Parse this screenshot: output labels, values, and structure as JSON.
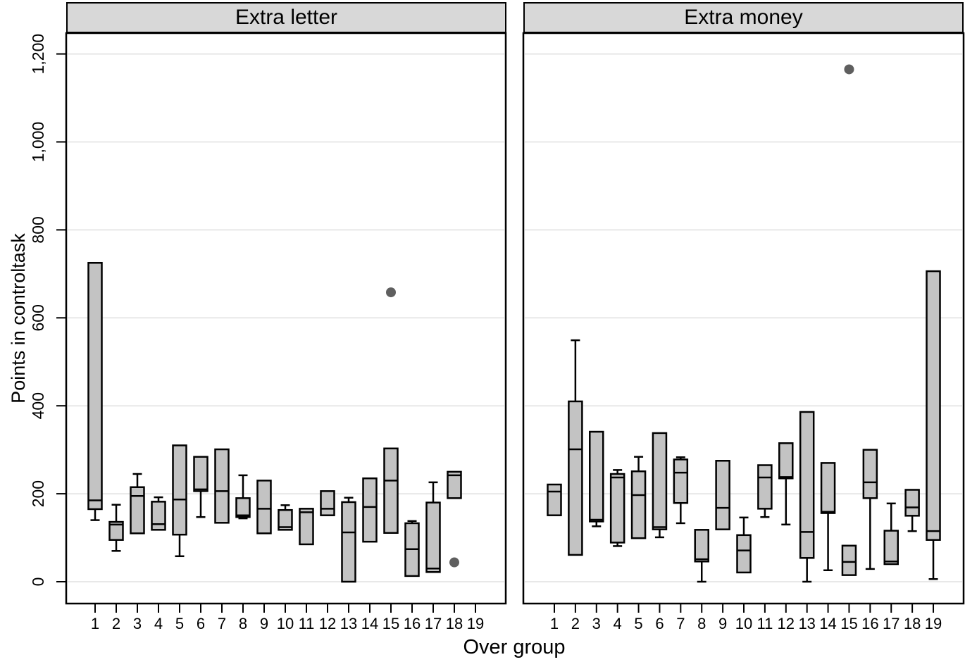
{
  "figure": {
    "x_axis_title": "Over group",
    "y_axis_title": "Points in controltask"
  },
  "chart_data": {
    "type": "boxplot",
    "xlabel": "Over group",
    "ylabel": "Points in controltask",
    "ylim": [
      -50,
      1250
    ],
    "grid": true,
    "y_ticks": [
      0,
      200,
      400,
      600,
      800,
      1000,
      1200
    ],
    "y_tick_labels": [
      "0",
      "200",
      "400",
      "600",
      "800",
      "1,000",
      "1,200"
    ],
    "x_tick_labels": [
      "1",
      "2",
      "3",
      "4",
      "5",
      "6",
      "7",
      "8",
      "9",
      "10",
      "11",
      "12",
      "13",
      "14",
      "15",
      "16",
      "17",
      "18",
      "19"
    ],
    "style": {
      "box_fill": "#c3c3c3",
      "header_fill": "#d8d8d8",
      "line_color": "#000000",
      "grid_color": "#e8e8e8",
      "outlier_color": "#5f5f5f"
    },
    "panels": [
      {
        "title": "Extra letter",
        "boxes": [
          {
            "group": 1,
            "min": 140,
            "q1": 165,
            "median": 185,
            "q3": 725,
            "max": 725,
            "outliers": []
          },
          {
            "group": 2,
            "min": 70,
            "q1": 95,
            "median": 130,
            "q3": 136,
            "max": 175,
            "outliers": []
          },
          {
            "group": 3,
            "min": 110,
            "q1": 110,
            "median": 195,
            "q3": 215,
            "max": 245,
            "outliers": []
          },
          {
            "group": 4,
            "min": 118,
            "q1": 118,
            "median": 131,
            "q3": 182,
            "max": 192,
            "outliers": []
          },
          {
            "group": 5,
            "min": 58,
            "q1": 107,
            "median": 187,
            "q3": 310,
            "max": 310,
            "outliers": []
          },
          {
            "group": 6,
            "min": 147,
            "q1": 206,
            "median": 210,
            "q3": 284,
            "max": 284,
            "outliers": []
          },
          {
            "group": 7,
            "min": 134,
            "q1": 134,
            "median": 206,
            "q3": 301,
            "max": 301,
            "outliers": []
          },
          {
            "group": 8,
            "min": 144,
            "q1": 147,
            "median": 151,
            "q3": 190,
            "max": 242,
            "outliers": []
          },
          {
            "group": 9,
            "min": 110,
            "q1": 110,
            "median": 166,
            "q3": 230,
            "max": 230,
            "outliers": []
          },
          {
            "group": 10,
            "min": 118,
            "q1": 118,
            "median": 124,
            "q3": 163,
            "max": 174,
            "outliers": []
          },
          {
            "group": 11,
            "min": 85,
            "q1": 85,
            "median": 158,
            "q3": 166,
            "max": 166,
            "outliers": []
          },
          {
            "group": 12,
            "min": 151,
            "q1": 151,
            "median": 166,
            "q3": 206,
            "max": 206,
            "outliers": []
          },
          {
            "group": 13,
            "min": 0,
            "q1": 0,
            "median": 112,
            "q3": 181,
            "max": 191,
            "outliers": []
          },
          {
            "group": 14,
            "min": 91,
            "q1": 91,
            "median": 170,
            "q3": 235,
            "max": 235,
            "outliers": []
          },
          {
            "group": 15,
            "min": 111,
            "q1": 111,
            "median": 230,
            "q3": 303,
            "max": 303,
            "outliers": [
              658
            ]
          },
          {
            "group": 16,
            "min": 13,
            "q1": 13,
            "median": 74,
            "q3": 133,
            "max": 138,
            "outliers": []
          },
          {
            "group": 17,
            "min": 22,
            "q1": 22,
            "median": 30,
            "q3": 180,
            "max": 226,
            "outliers": []
          },
          {
            "group": 18,
            "min": 190,
            "q1": 190,
            "median": 242,
            "q3": 250,
            "max": 250,
            "outliers": [
              44
            ]
          }
        ]
      },
      {
        "title": "Extra money",
        "boxes": [
          {
            "group": 1,
            "min": 151,
            "q1": 151,
            "median": 205,
            "q3": 221,
            "max": 221,
            "outliers": []
          },
          {
            "group": 2,
            "min": 61,
            "q1": 61,
            "median": 301,
            "q3": 410,
            "max": 549,
            "outliers": []
          },
          {
            "group": 3,
            "min": 126,
            "q1": 137,
            "median": 141,
            "q3": 341,
            "max": 341,
            "outliers": []
          },
          {
            "group": 4,
            "min": 81,
            "q1": 89,
            "median": 237,
            "q3": 245,
            "max": 254,
            "outliers": []
          },
          {
            "group": 5,
            "min": 99,
            "q1": 99,
            "median": 197,
            "q3": 251,
            "max": 284,
            "outliers": []
          },
          {
            "group": 6,
            "min": 101,
            "q1": 119,
            "median": 124,
            "q3": 338,
            "max": 338,
            "outliers": []
          },
          {
            "group": 7,
            "min": 133,
            "q1": 179,
            "median": 248,
            "q3": 278,
            "max": 283,
            "outliers": []
          },
          {
            "group": 8,
            "min": 0,
            "q1": 46,
            "median": 51,
            "q3": 118,
            "max": 118,
            "outliers": []
          },
          {
            "group": 9,
            "min": 119,
            "q1": 119,
            "median": 168,
            "q3": 275,
            "max": 275,
            "outliers": []
          },
          {
            "group": 10,
            "min": 21,
            "q1": 21,
            "median": 71,
            "q3": 106,
            "max": 146,
            "outliers": []
          },
          {
            "group": 11,
            "min": 147,
            "q1": 166,
            "median": 237,
            "q3": 265,
            "max": 265,
            "outliers": []
          },
          {
            "group": 12,
            "min": 130,
            "q1": 235,
            "median": 238,
            "q3": 315,
            "max": 315,
            "outliers": []
          },
          {
            "group": 13,
            "min": 0,
            "q1": 54,
            "median": 113,
            "q3": 386,
            "max": 386,
            "outliers": []
          },
          {
            "group": 14,
            "min": 26,
            "q1": 156,
            "median": 159,
            "q3": 270,
            "max": 270,
            "outliers": []
          },
          {
            "group": 15,
            "min": 15,
            "q1": 15,
            "median": 45,
            "q3": 82,
            "max": 82,
            "outliers": [
              1165
            ]
          },
          {
            "group": 16,
            "min": 29,
            "q1": 190,
            "median": 226,
            "q3": 300,
            "max": 300,
            "outliers": []
          },
          {
            "group": 17,
            "min": 40,
            "q1": 40,
            "median": 46,
            "q3": 116,
            "max": 178,
            "outliers": []
          },
          {
            "group": 18,
            "min": 115,
            "q1": 150,
            "median": 169,
            "q3": 209,
            "max": 209,
            "outliers": []
          },
          {
            "group": 19,
            "min": 6,
            "q1": 95,
            "median": 115,
            "q3": 706,
            "max": 706,
            "outliers": []
          }
        ]
      }
    ]
  }
}
